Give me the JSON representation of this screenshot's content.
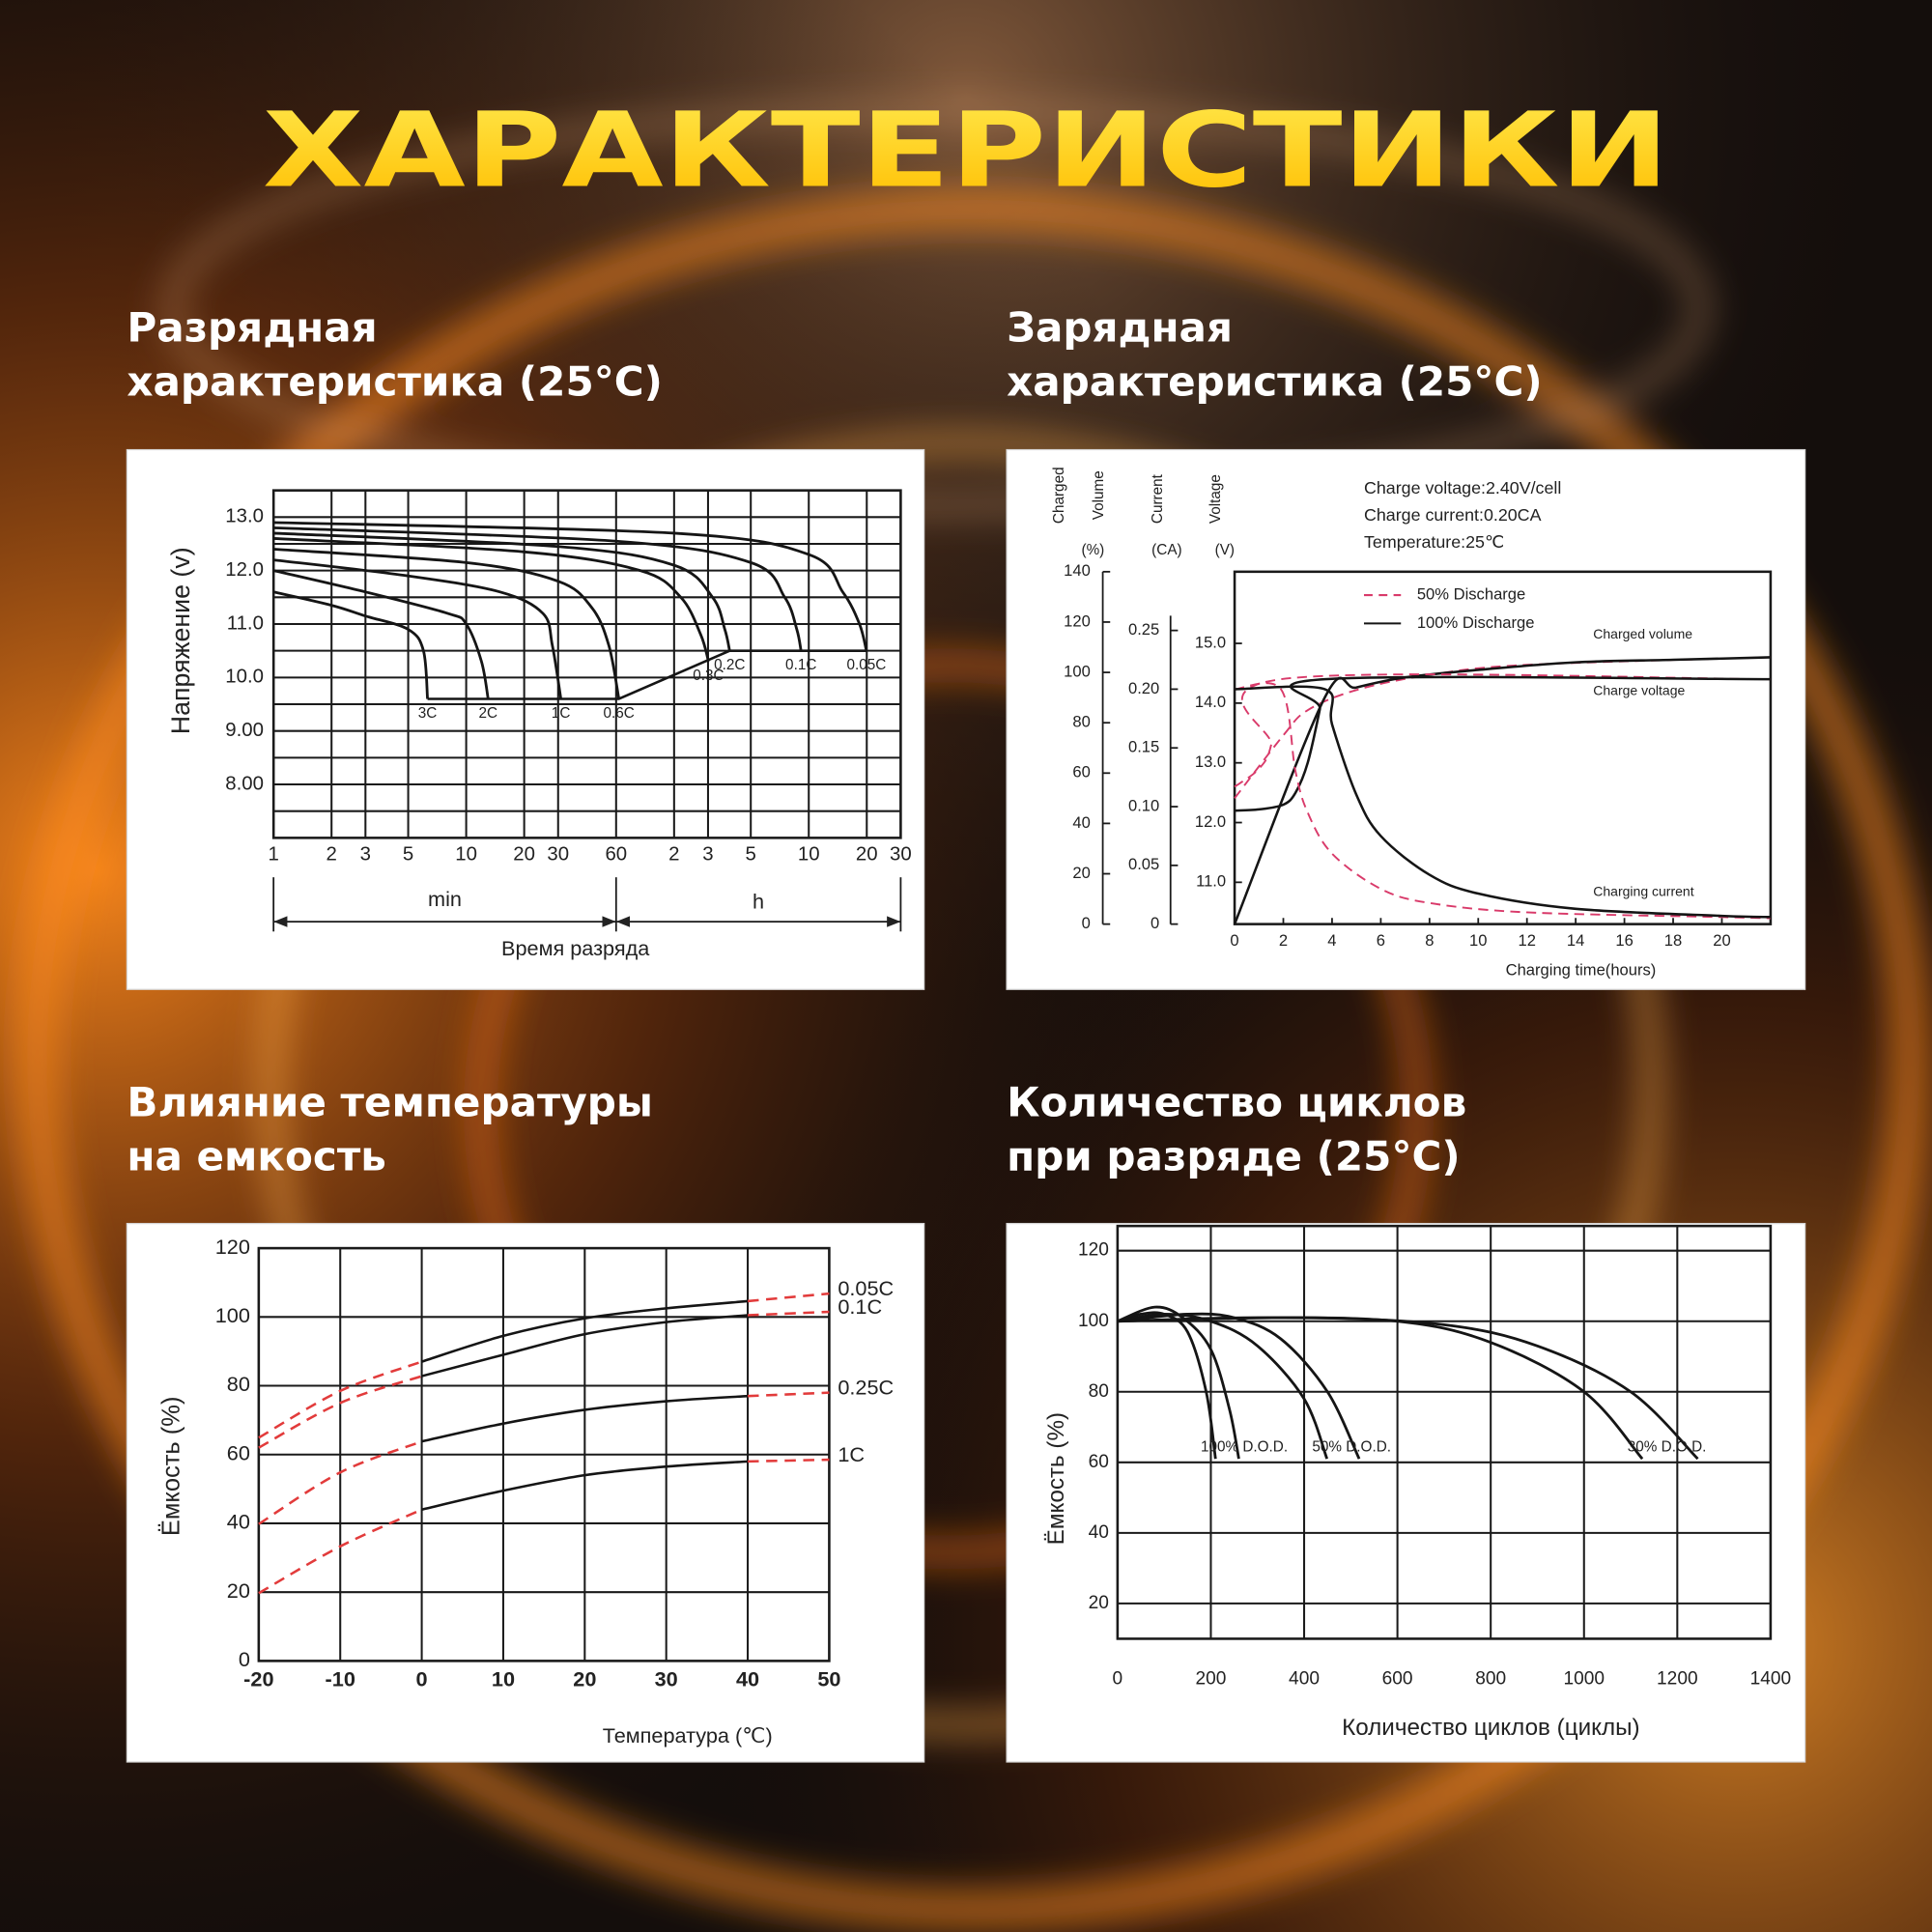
{
  "title": "ХАРАКТЕРИСТИКИ",
  "chart_data": [
    {
      "type": "line",
      "heading": [
        "Разрядная",
        "характеристика (25°C)"
      ],
      "y_label": "Напряжение (v)",
      "x_label": "Время разряда",
      "x_unit_labels": [
        "min",
        "h"
      ],
      "xlog": true,
      "xlim": [
        1,
        1800
      ],
      "xticks": [
        1,
        2,
        3,
        5,
        10,
        20,
        30,
        60,
        {
          "value": 120,
          "label": "2"
        },
        {
          "value": 180,
          "label": "3"
        },
        {
          "value": 300,
          "label": "5"
        },
        {
          "value": 600,
          "label": "10"
        },
        {
          "value": 1200,
          "label": "20"
        },
        {
          "value": 1800,
          "label": "30"
        }
      ],
      "ylim": [
        7,
        13.5
      ],
      "yticks": [
        {
          "value": 13,
          "label": "13.0"
        },
        {
          "value": 12,
          "label": "12.0"
        },
        {
          "value": 11,
          "label": "11.0"
        },
        {
          "value": 10,
          "label": "10.0"
        },
        {
          "value": 9,
          "label": "9.00"
        },
        {
          "value": 8,
          "label": "8.00"
        }
      ],
      "yminor": [
        13.5,
        12.5,
        11.5,
        10.5,
        9.5,
        8.5,
        7.5
      ],
      "grid": true,
      "color": "#151515",
      "series": [
        {
          "name": "3C",
          "x": [
            1,
            2,
            3,
            5,
            6,
            6.3
          ],
          "values": [
            11.6,
            11.35,
            11.15,
            10.9,
            10.5,
            9.6
          ]
        },
        {
          "name": "2C",
          "x": [
            1,
            3,
            8,
            10,
            12,
            13
          ],
          "values": [
            12.0,
            11.6,
            11.2,
            11.0,
            10.3,
            9.6
          ]
        },
        {
          "name": "1C",
          "x": [
            1,
            5,
            15,
            25,
            28,
            31
          ],
          "values": [
            12.2,
            11.9,
            11.6,
            11.2,
            10.6,
            9.6
          ]
        },
        {
          "name": "0.6C",
          "x": [
            1,
            10,
            30,
            45,
            55,
            62
          ],
          "values": [
            12.4,
            12.15,
            11.8,
            11.3,
            10.6,
            9.6
          ]
        },
        {
          "name": "0.3C",
          "x": [
            1,
            20,
            80,
            130,
            165,
            181
          ],
          "values": [
            12.6,
            12.35,
            12.0,
            11.5,
            10.8,
            10.3
          ]
        },
        {
          "name": "0.2C",
          "x": [
            1,
            30,
            120,
            190,
            220,
            233
          ],
          "values": [
            12.7,
            12.45,
            12.1,
            11.5,
            10.9,
            10.5
          ]
        },
        {
          "name": "0.1C",
          "x": [
            1,
            60,
            300,
            450,
            520,
            547
          ],
          "values": [
            12.8,
            12.55,
            12.15,
            11.5,
            10.9,
            10.5
          ]
        },
        {
          "name": "0.05C",
          "x": [
            1,
            120,
            600,
            900,
            1100,
            1195
          ],
          "values": [
            12.9,
            12.7,
            12.3,
            11.6,
            11.0,
            10.5
          ]
        }
      ],
      "cutoff": {
        "x": [
          6.3,
          62,
          233,
          1195
        ],
        "values": [
          9.6,
          9.6,
          10.5,
          10.5
        ]
      }
    },
    {
      "type": "line",
      "heading": [
        "Зарядная",
        "характеристика (25°C)"
      ],
      "y_label": [
        "Charged",
        "Volume"
      ],
      "y_unit": "(%)",
      "y2_label": "Current",
      "y2_unit": "(CA)",
      "y3_label": "Voltage",
      "y3_unit": "(V)",
      "notes": [
        "Charge voltage:2.40V/cell",
        "Charge current:0.20CA",
        "Temperature:25℃"
      ],
      "x_label": "Charging time(hours)",
      "xlim": [
        0,
        22
      ],
      "xticks": [
        0,
        2,
        4,
        6,
        8,
        10,
        12,
        14,
        16,
        18,
        20
      ],
      "ylim": [
        0,
        140
      ],
      "yticks": [
        0,
        20,
        40,
        60,
        80,
        100,
        120,
        140
      ],
      "y2lim": [
        0,
        0.3
      ],
      "y2ticks": [
        0,
        0.05,
        {
          "value": 0.1,
          "label": "0.10"
        },
        0.15,
        {
          "value": 0.2,
          "label": "0.20"
        },
        0.25
      ],
      "y3lim": [
        10.3,
        16.2
      ],
      "y3ticks": [
        {
          "value": 11,
          "label": "11.0"
        },
        {
          "value": 12,
          "label": "12.0"
        },
        {
          "value": 13,
          "label": "13.0"
        },
        {
          "value": 14,
          "label": "14.0"
        },
        {
          "value": 15,
          "label": "15.0"
        }
      ],
      "legend": [
        {
          "name": "50% Discharge",
          "color": "#d93a6a",
          "dashed": true
        },
        {
          "name": "100% Discharge",
          "color": "#151515",
          "dashed": false
        }
      ],
      "series": [
        {
          "name": "Charged volume",
          "axis": "y",
          "curves": [
            {
              "x": [
                0,
                2,
                3,
                5,
                8,
                12,
                22
              ],
              "values": [
                50,
                75,
                85,
                93,
                99,
                103,
                106
              ]
            },
            {
              "x": [
                0,
                3.7,
                5,
                7,
                10,
                14,
                18,
                22
              ],
              "values": [
                0,
                90,
                94,
                98,
                101,
                104,
                105,
                106
              ]
            }
          ]
        },
        {
          "name": "Charge voltage",
          "axis": "y3",
          "curves": [
            {
              "x": [
                0,
                1,
                1.5,
                1.9,
                22
              ],
              "values": [
                12.6,
                12.9,
                13.3,
                14.4,
                14.4
              ]
            },
            {
              "x": [
                0,
                1,
                2,
                2.5,
                3,
                3.5,
                3.7,
                22
              ],
              "values": [
                12.2,
                12.22,
                12.3,
                12.5,
                13.0,
                13.9,
                14.4,
                14.4
              ]
            }
          ]
        },
        {
          "name": "Charging current",
          "axis": "y2",
          "curves": [
            {
              "x": [
                0,
                1.9,
                2.5,
                3,
                4,
                6,
                8,
                12,
                20,
                22
              ],
              "values": [
                0.2,
                0.2,
                0.13,
                0.095,
                0.06,
                0.03,
                0.018,
                0.01,
                0.006,
                0.005
              ]
            },
            {
              "x": [
                0,
                3.7,
                4,
                5,
                6,
                8,
                10,
                14,
                20,
                22
              ],
              "values": [
                0.2,
                0.2,
                0.17,
                0.11,
                0.075,
                0.042,
                0.026,
                0.013,
                0.007,
                0.006
              ]
            }
          ]
        }
      ]
    },
    {
      "type": "line",
      "heading": [
        "Влияние температуры",
        "на емкость"
      ],
      "y_label": "Ёмкость (%)",
      "x_label": "Температура (℃)",
      "xlim": [
        -20,
        50
      ],
      "xticks": [
        -20,
        -10,
        0,
        10,
        20,
        30,
        40,
        50
      ],
      "ylim": [
        0,
        120
      ],
      "yticks": [
        0,
        20,
        40,
        60,
        80,
        100,
        120
      ],
      "grid": true,
      "color": "#151515",
      "extrapolation_color": "#e23b3b",
      "solid_range": [
        0,
        40
      ],
      "x": [
        -20,
        -10,
        0,
        10,
        20,
        30,
        40,
        50
      ],
      "series": [
        {
          "name": "0.05C",
          "values": [
            64.9,
            78.5,
            87,
            94.5,
            99.6,
            102.5,
            104.6,
            106.8
          ]
        },
        {
          "name": "0.1C",
          "values": [
            62,
            75,
            82.8,
            89,
            95,
            98.5,
            100.5,
            101.5
          ]
        },
        {
          "name": "0.25C",
          "values": [
            39.8,
            54.8,
            63.8,
            69,
            73,
            75.5,
            77,
            78
          ]
        },
        {
          "name": "1C",
          "values": [
            19.7,
            33.3,
            44,
            49.5,
            54,
            56.5,
            58,
            58.5
          ]
        }
      ]
    },
    {
      "type": "line",
      "heading": [
        "Количество циклов",
        "при разряде (25°C)"
      ],
      "y_label": "Ёмкость (%)",
      "x_label": "Количество циклов (циклы)",
      "xlim": [
        0,
        1400
      ],
      "xticks": [
        0,
        200,
        400,
        600,
        800,
        1000,
        1200,
        1400
      ],
      "ylim": [
        10,
        127
      ],
      "yticks": [
        20,
        40,
        60,
        80,
        100,
        120
      ],
      "grid": true,
      "color": "#151515",
      "series": [
        {
          "name": "100% D.O.D.",
          "curves": [
            {
              "x": [
                0,
                50,
                100,
                150,
                190,
                210
              ],
              "values": [
                100,
                102,
                102,
                97,
                80,
                61
              ]
            },
            {
              "x": [
                0,
                80,
                140,
                200,
                240,
                260
              ],
              "values": [
                100,
                104,
                101,
                92,
                75,
                61
              ]
            }
          ]
        },
        {
          "name": "50% D.O.D.",
          "curves": [
            {
              "x": [
                0,
                100,
                200,
                300,
                400,
                449
              ],
              "values": [
                100,
                102,
                100,
                93,
                78,
                61
              ]
            },
            {
              "x": [
                0,
                150,
                250,
                350,
                450,
                518
              ],
              "values": [
                100,
                102,
                101,
                95,
                80,
                61
              ]
            }
          ]
        },
        {
          "name": "30% D.O.D.",
          "curves": [
            {
              "x": [
                0,
                300,
                600,
                800,
                1000,
                1125
              ],
              "values": [
                100,
                101,
                100,
                94,
                80,
                61
              ]
            },
            {
              "x": [
                0,
                400,
                700,
                900,
                1100,
                1244
              ],
              "values": [
                100,
                101,
                99,
                93,
                80,
                61
              ]
            }
          ]
        }
      ]
    }
  ]
}
